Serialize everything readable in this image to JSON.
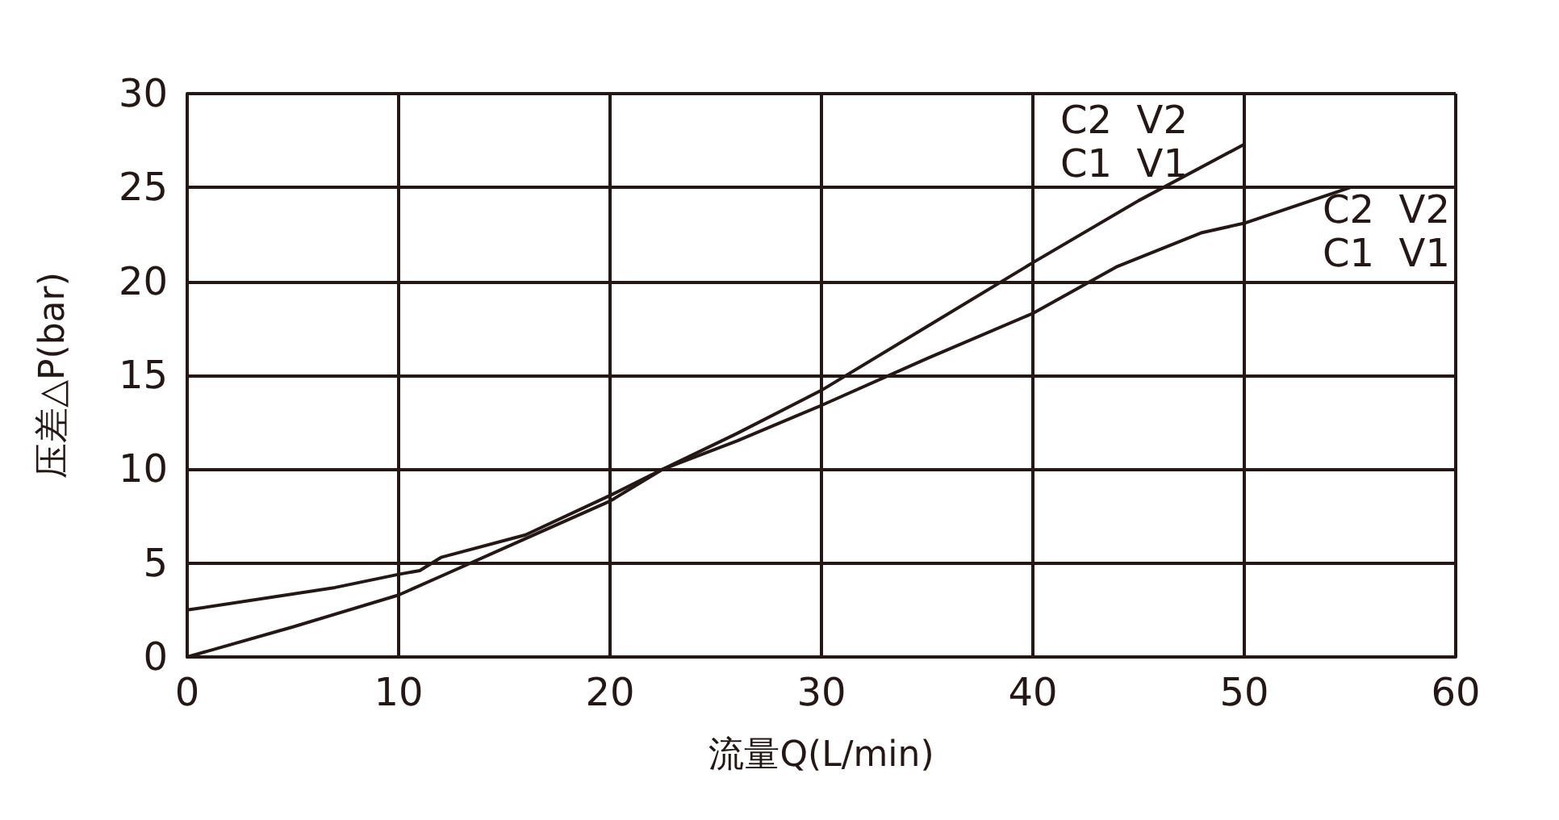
{
  "chart_data": {
    "type": "line",
    "xlabel": "流量Q(L/min)",
    "ylabel": "压差△P(bar)",
    "xlim": [
      0,
      60
    ],
    "xticks": [
      0,
      10,
      20,
      30,
      40,
      50,
      60
    ],
    "ylim": [
      0,
      30
    ],
    "yticks": [
      0,
      5,
      10,
      15,
      20,
      25,
      30
    ],
    "grid": true,
    "marker": "none",
    "line_style": "solid",
    "series": [
      {
        "color": "#231815",
        "x": [
          0,
          5,
          10,
          12,
          16,
          20,
          22.5,
          26,
          30,
          35,
          40,
          45,
          50
        ],
        "values": [
          0,
          1.6,
          3.3,
          4.3,
          6.3,
          8.3,
          10,
          11.9,
          14.2,
          17.6,
          21,
          24.3,
          27.3
        ]
      },
      {
        "color": "#231815",
        "x": [
          0,
          7,
          10,
          11,
          12,
          16,
          20,
          22.5,
          26,
          30,
          35,
          40,
          44,
          48,
          50,
          55
        ],
        "values": [
          2.5,
          3.7,
          4.4,
          4.6,
          5.3,
          6.5,
          8.6,
          10,
          11.5,
          13.4,
          15.9,
          18.3,
          20.8,
          22.6,
          23.1,
          25
        ]
      }
    ],
    "annotations": [
      "C2  V2",
      "C1  V1",
      "C2  V2",
      "C1  V1"
    ]
  }
}
